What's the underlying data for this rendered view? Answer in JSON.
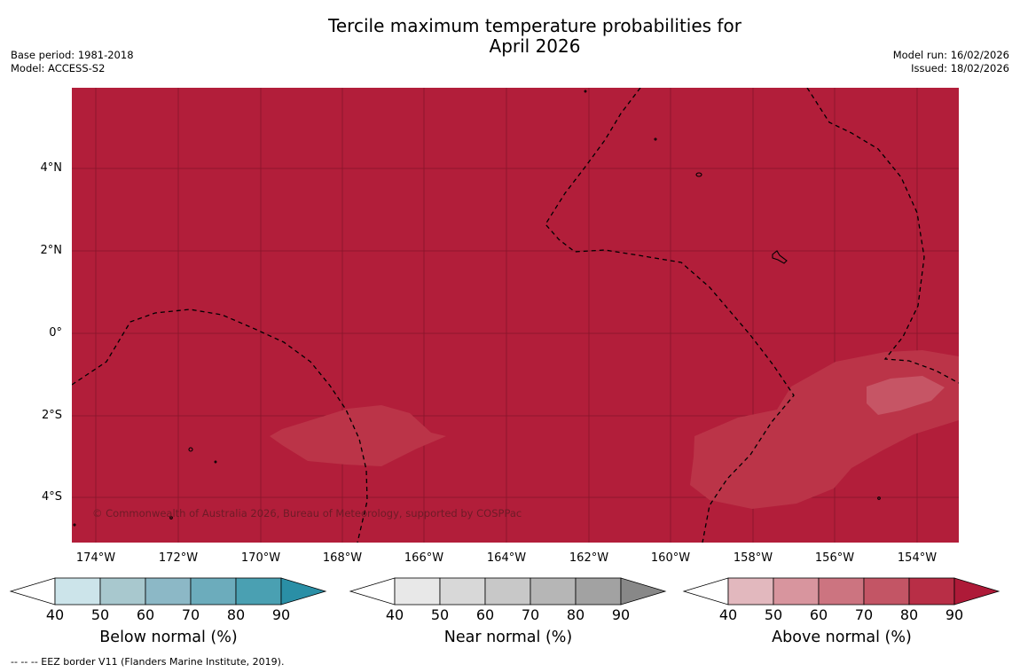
{
  "header": {
    "title_line1": "Tercile maximum temperature probabilities for",
    "title_line2": "April 2026",
    "base_period": "Base period: 1981-2018",
    "model": "Model: ACCESS-S2",
    "model_run": "Model run: 16/02/2026",
    "issued": "Issued: 18/02/2026"
  },
  "map": {
    "background_color": "#b21e3a",
    "latitude_labels": [
      "4°N",
      "2°N",
      "0°",
      "2°S",
      "4°S"
    ],
    "longitude_labels": [
      "174°W",
      "172°W",
      "170°W",
      "168°W",
      "166°W",
      "164°W",
      "162°W",
      "160°W",
      "158°W",
      "156°W",
      "154°W"
    ],
    "copyright": "© Commonwealth of Australia 2026, Bureau of Meteorology, supported by COSPPac"
  },
  "colorbars": [
    {
      "label": "Below normal (%)",
      "ticks": [
        "40",
        "50",
        "60",
        "70",
        "80",
        "90"
      ],
      "colors": [
        "#ffffff",
        "#cce4ea",
        "#a8c8ce",
        "#8cb8c6",
        "#6cacbc",
        "#4aa0b2",
        "#2a8fa6"
      ]
    },
    {
      "label": "Near normal (%)",
      "ticks": [
        "40",
        "50",
        "60",
        "70",
        "80",
        "90"
      ],
      "colors": [
        "#ffffff",
        "#e8e8e8",
        "#d8d8d8",
        "#c8c8c8",
        "#b6b6b6",
        "#a2a2a2",
        "#888888"
      ]
    },
    {
      "label": "Above normal (%)",
      "ticks": [
        "40",
        "50",
        "60",
        "70",
        "80",
        "90"
      ],
      "colors": [
        "#ffffff",
        "#e2b8be",
        "#d8959e",
        "#cc7480",
        "#c35565",
        "#b82e46",
        "#ae1a38"
      ]
    }
  ],
  "footer": {
    "legend_text": "--  --  -- EEZ border V11 (Flanders Marine Institute, 2019)."
  }
}
